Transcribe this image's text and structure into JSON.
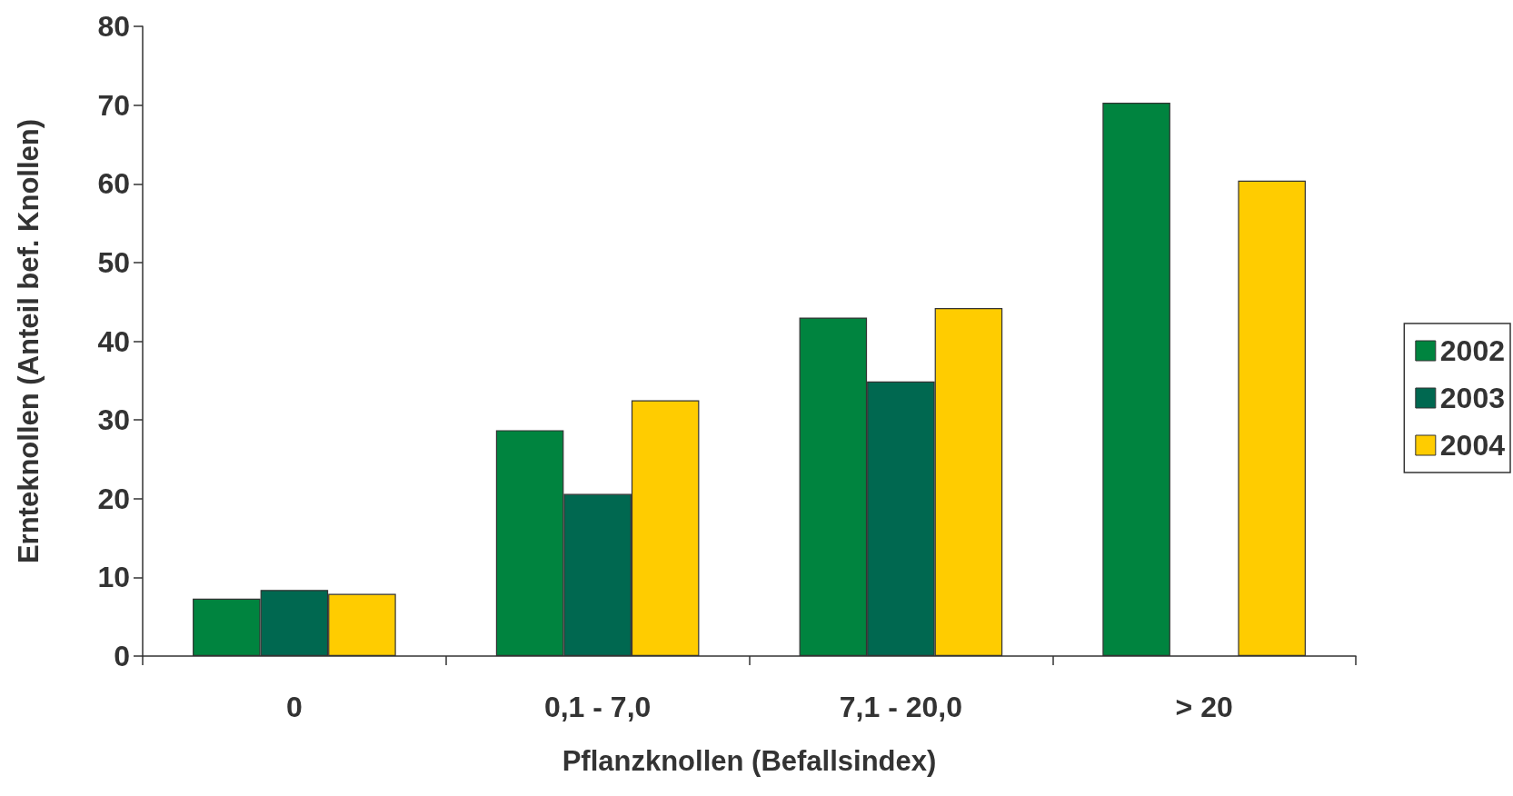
{
  "chart_data": {
    "type": "bar",
    "xlabel": "Pflanzknollen (Befallsindex)",
    "ylabel": "Ernteknollen (Anteil bef. Knollen)",
    "categories": [
      "0",
      "0,1 - 7,0",
      "7,1 - 20,0",
      "> 20"
    ],
    "series": [
      {
        "name": "2002",
        "color": "#00843f",
        "values": [
          7.3,
          28.7,
          43.0,
          70.3
        ]
      },
      {
        "name": "2003",
        "color": "#006850",
        "values": [
          8.4,
          20.6,
          34.9,
          null
        ]
      },
      {
        "name": "2004",
        "color": "#ffcc00",
        "values": [
          7.9,
          32.5,
          44.2,
          60.4
        ]
      }
    ],
    "ylim": [
      0,
      80
    ],
    "yticks": [
      0,
      10,
      20,
      30,
      40,
      50,
      60,
      70,
      80
    ],
    "grid": false,
    "legend": "right"
  }
}
